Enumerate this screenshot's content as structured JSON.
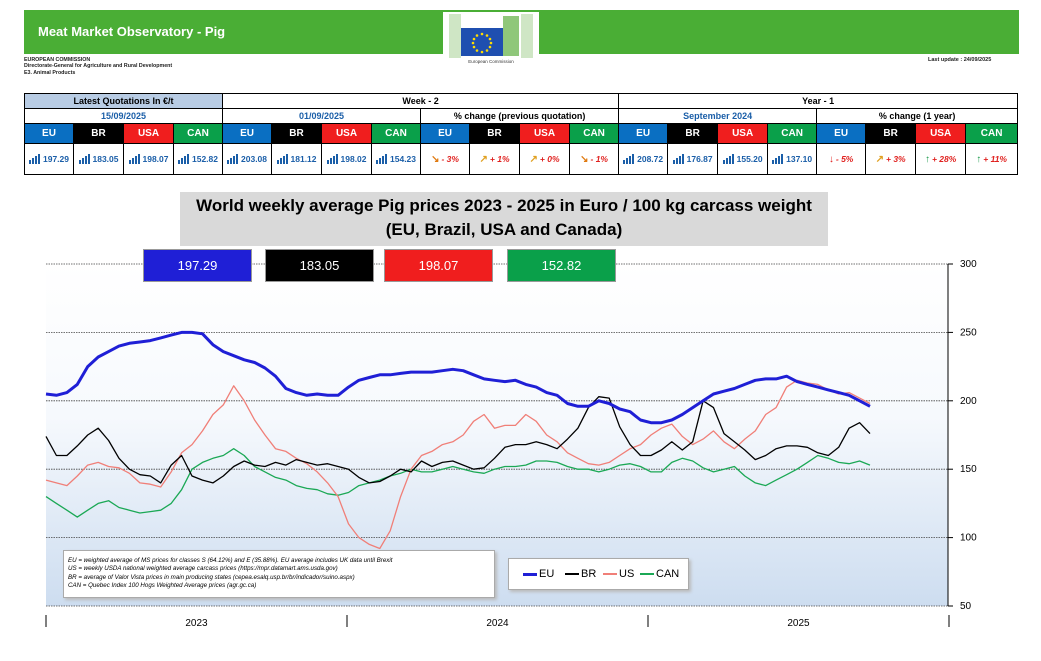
{
  "header": {
    "title": "Meat Market Observatory - Pig",
    "org_lines": [
      "EUROPEAN COMMISSION",
      "Directorate-General for Agriculture and Rural Development",
      "E3. Animal Products"
    ],
    "logo_text": "European Commission",
    "last_update": "Last update :  24/09/2025"
  },
  "quotes_table": {
    "latest_label": "Latest Quotations In €/t",
    "latest_date": "15/09/2025",
    "week_label": "Week - 2",
    "week_date": "01/09/2025",
    "week_change_label": "% change (previous quotation)",
    "year_label": "Year - 1",
    "year_date": "September 2024",
    "year_change_label": "% change (1 year)",
    "codes": [
      "EU",
      "BR",
      "USA",
      "CAN"
    ],
    "latest_values": [
      "197.29",
      "183.05",
      "198.07",
      "152.82"
    ],
    "week_values": [
      "203.08",
      "181.12",
      "198.02",
      "154.23"
    ],
    "week_changes": [
      "- 3%",
      "+ 1%",
      "+ 0%",
      "- 1%"
    ],
    "week_arrows": [
      "arrow-down-right-icon",
      "arrow-up-right-icon",
      "arrow-up-right-icon",
      "arrow-down-right-icon"
    ],
    "year_values": [
      "208.72",
      "176.87",
      "155.20",
      "137.10"
    ],
    "year_changes": [
      "- 5%",
      "+ 3%",
      "+ 28%",
      "+ 11%"
    ],
    "year_arrows": [
      "arrow-down-icon",
      "arrow-up-right-icon",
      "arrow-up-icon",
      "arrow-up-icon"
    ]
  },
  "chart_title": {
    "line1": "World weekly average Pig prices 2023 - 2025  in Euro / 100 kg carcass weight",
    "line2": "(EU, Brazil, USA and Canada)"
  },
  "value_boxes": [
    "197.29",
    "183.05",
    "198.07",
    "152.82"
  ],
  "notes": [
    "EU   = weighted average of MS prices for classes S (64.12%) and E (35.88%). EU average includes UK data  until Brexit",
    "US   = weekly USDA national weighted average carcass prices (https://mpr.datamart.ams.usda.gov)",
    "BR   = average of Valor Vista prices in main producing states (cepea.esalq.usp.br/br/indicador/suino.aspx)",
    "CAN = Quebec Index 100 Hogs Weighted Average prices (agr.gc.ca)"
  ],
  "colors": {
    "eu": "#1f1fd6",
    "br": "#000000",
    "us": "#f07f78",
    "can": "#1ba855",
    "banner": "#4aae35"
  },
  "chart_data": {
    "type": "line",
    "ylim": [
      50,
      300
    ],
    "yticks": [
      "300",
      "250",
      "200",
      "150",
      "100",
      "50"
    ],
    "xlabels": [
      "2023",
      "2024",
      "2025"
    ],
    "grid": true,
    "legend_position": "bottom-center",
    "series": [
      {
        "name": "EU",
        "color": "#1f1fd6",
        "values": [
          205,
          204,
          206,
          212,
          225,
          232,
          236,
          240,
          242,
          243,
          244,
          246,
          248,
          250,
          250,
          249,
          241,
          236,
          233,
          230,
          228,
          224,
          218,
          209,
          206,
          204,
          205,
          204,
          204,
          210,
          215,
          217,
          219,
          219,
          220,
          221,
          221,
          221,
          222,
          223,
          222,
          219,
          216,
          215,
          214,
          215,
          212,
          210,
          206,
          204,
          198,
          196,
          196,
          200,
          198,
          194,
          192,
          186,
          184,
          184,
          186,
          190,
          195,
          200,
          205,
          207,
          209,
          212,
          215,
          216,
          216,
          218,
          214,
          212,
          210,
          208,
          206,
          204,
          200,
          196
        ]
      },
      {
        "name": "BR",
        "color": "#000000",
        "values": [
          174,
          160,
          160,
          167,
          175,
          180,
          171,
          158,
          150,
          146,
          145,
          140,
          153,
          160,
          145,
          142,
          140,
          145,
          152,
          156,
          153,
          152,
          155,
          153,
          157,
          155,
          153,
          154,
          152,
          150,
          144,
          140,
          141,
          145,
          150,
          148,
          156,
          152,
          155,
          156,
          153,
          150,
          151,
          158,
          166,
          168,
          168,
          170,
          168,
          165,
          172,
          180,
          195,
          203,
          202,
          181,
          168,
          160,
          160,
          164,
          170,
          164,
          170,
          200,
          195,
          176,
          170,
          164,
          157,
          160,
          165,
          167,
          167,
          166,
          162,
          160,
          166,
          180,
          184,
          176
        ]
      },
      {
        "name": "US",
        "color": "#f07f78",
        "values": [
          142,
          140,
          138,
          145,
          153,
          155,
          152,
          151,
          147,
          140,
          139,
          137,
          148,
          162,
          168,
          178,
          190,
          197,
          211,
          200,
          186,
          175,
          165,
          163,
          158,
          154,
          148,
          140,
          130,
          110,
          100,
          95,
          92,
          105,
          130,
          150,
          160,
          163,
          168,
          170,
          175,
          185,
          190,
          180,
          182,
          182,
          190,
          185,
          175,
          170,
          162,
          158,
          154,
          153,
          155,
          160,
          165,
          168,
          175,
          180,
          183,
          174,
          168,
          172,
          178,
          170,
          165,
          172,
          178,
          190,
          195,
          210,
          215,
          213,
          212,
          208,
          205,
          206,
          202,
          198
        ]
      },
      {
        "name": "CAN",
        "color": "#1ba855",
        "values": [
          130,
          125,
          120,
          115,
          120,
          125,
          127,
          122,
          120,
          118,
          119,
          120,
          125,
          135,
          150,
          155,
          158,
          160,
          165,
          160,
          152,
          148,
          144,
          142,
          138,
          136,
          135,
          132,
          131,
          133,
          138,
          140,
          142,
          145,
          147,
          150,
          148,
          148,
          150,
          152,
          150,
          148,
          147,
          150,
          152,
          152,
          153,
          156,
          156,
          155,
          152,
          150,
          150,
          148,
          150,
          153,
          154,
          152,
          148,
          148,
          155,
          158,
          156,
          151,
          148,
          150,
          152,
          145,
          140,
          138,
          142,
          146,
          150,
          155,
          160,
          158,
          155,
          154,
          156,
          153
        ]
      }
    ]
  }
}
